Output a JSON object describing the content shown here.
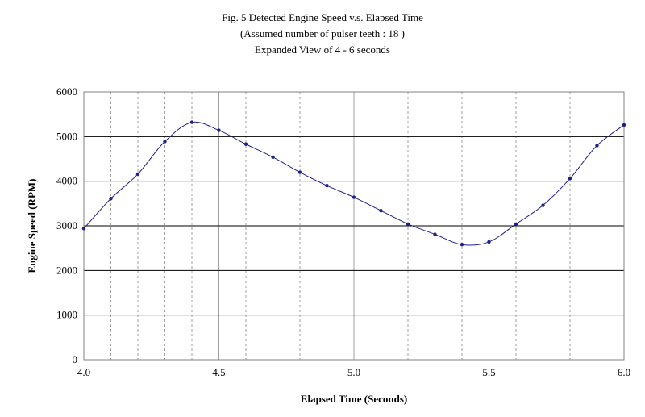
{
  "chart_data": {
    "type": "line",
    "title": "Fig. 5 Detected Engine Speed v.s. Elapsed Time",
    "subtitle": [
      "(Assumed number of pulser teeth : 18 )",
      "Expanded View of 4 - 6 seconds"
    ],
    "xlabel": "Elapsed Time (Seconds)",
    "ylabel": "Engine Speed (RPM)",
    "xlim": [
      4.0,
      6.0
    ],
    "ylim": [
      0,
      6000
    ],
    "x_ticks": [
      4.0,
      4.5,
      5.0,
      5.5,
      6.0
    ],
    "x_tick_labels": [
      "4.0",
      "4.5",
      "5.0",
      "5.5",
      "6.0"
    ],
    "x_minor_step": 0.1,
    "y_ticks": [
      0,
      1000,
      2000,
      3000,
      4000,
      5000,
      6000
    ],
    "y_tick_labels": [
      "0",
      "1000",
      "2000",
      "3000",
      "4000",
      "5000",
      "6000"
    ],
    "grid": true,
    "legend": "none",
    "line_color": "#1f1f8f",
    "marker_color": "#1f1f8f",
    "series": [
      {
        "x": [
          4.0,
          4.1,
          4.2,
          4.3,
          4.4,
          4.5,
          4.6,
          4.7,
          4.8,
          4.9,
          5.0,
          5.1,
          5.2,
          5.3,
          5.4,
          5.5,
          5.6,
          5.7,
          5.8,
          5.9,
          6.0
        ],
        "values": [
          2940,
          3610,
          4160,
          4890,
          5320,
          5140,
          4830,
          4540,
          4200,
          3900,
          3640,
          3340,
          3040,
          2810,
          2580,
          2640,
          3040,
          3460,
          4060,
          4800,
          5260
        ]
      }
    ]
  }
}
